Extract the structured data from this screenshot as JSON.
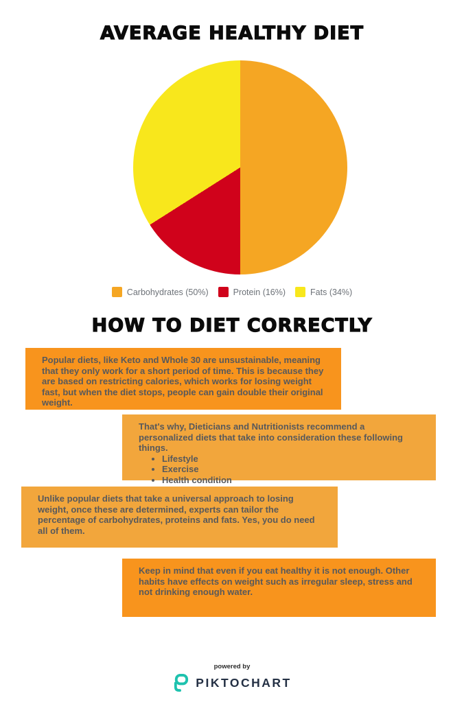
{
  "header": {
    "title": "AVERAGE HEALTHY DIET"
  },
  "chart_data": {
    "type": "pie",
    "title": "AVERAGE HEALTHY DIET",
    "labels": [
      "Carbohydrates",
      "Protein",
      "Fats"
    ],
    "values": [
      50,
      16,
      34
    ],
    "colors": [
      "#F5A623",
      "#D0021B",
      "#F8E71C"
    ],
    "legend_entries": [
      "Carbohydrates (50%)",
      "Protein (16%)",
      "Fats (34%)"
    ],
    "legend_position": "bottom",
    "start_angle_deg": 0,
    "direction": "clockwise"
  },
  "section": {
    "title": "HOW TO DIET CORRECTLY"
  },
  "blocks": [
    {
      "bg": "#F8941D",
      "text": "Popular diets, like Keto and Whole 30 are unsustainable, meaning that they only work for a short period of time. This is because they are based on restricting calories, which works for losing weight fast, but when the diet stops, people can gain double their original weight."
    },
    {
      "bg": "#F2A63C",
      "intro": "That's why, Dieticians and Nutritionists recommend a personalized diets that take into consideration these following things.",
      "bullets": [
        "Lifestyle",
        "Exercise",
        "Health condition"
      ]
    },
    {
      "bg": "#F2A63C",
      "text": "Unlike popular diets that take a universal approach to losing weight, once these are determined, experts can tailor the percentage of carbohydrates, proteins and fats. Yes, you do need all of them."
    },
    {
      "bg": "#F8941D",
      "text": "Keep in mind that even if you eat healthy it is not enough. Other habits have effects on weight such as irregular sleep, stress and not drinking enough water."
    }
  ],
  "footer": {
    "powered_by": "powered by",
    "brand": "PIKTOCHART",
    "brand_color": "#243044",
    "logo_color": "#1EC2AE"
  }
}
